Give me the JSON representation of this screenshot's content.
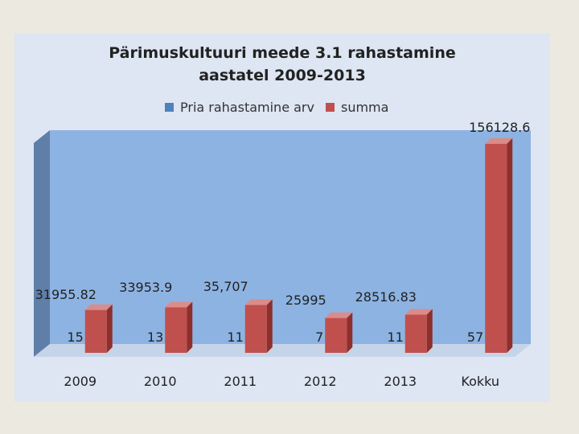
{
  "title_line1": "Pärimuskultuuri meede 3.1 rahastamine",
  "title_line2": "aastatel 2009-2013",
  "colors": {
    "count": "#4f81bd",
    "amount": "#c0504d"
  },
  "chart_data": {
    "type": "bar",
    "title": "Pärimuskultuuri meede 3.1 rahastamine aastatel 2009-2013",
    "categories": [
      "2009",
      "2010",
      "2011",
      "2012",
      "2013",
      "Kokku"
    ],
    "series": [
      {
        "name": "Pria rahastamine arv",
        "values": [
          15,
          13,
          11,
          7,
          11,
          57
        ],
        "labels": [
          "15",
          "13",
          "11",
          "7",
          "11",
          "57"
        ]
      },
      {
        "name": "summa",
        "values": [
          31955.82,
          33953.9,
          35707,
          25995,
          28516.83,
          156128.6
        ],
        "labels": [
          "31955.82",
          "33953.9",
          "35,707",
          "25995",
          "28516.83",
          "156128.6"
        ]
      }
    ],
    "legend_position": "top",
    "grid": false
  }
}
